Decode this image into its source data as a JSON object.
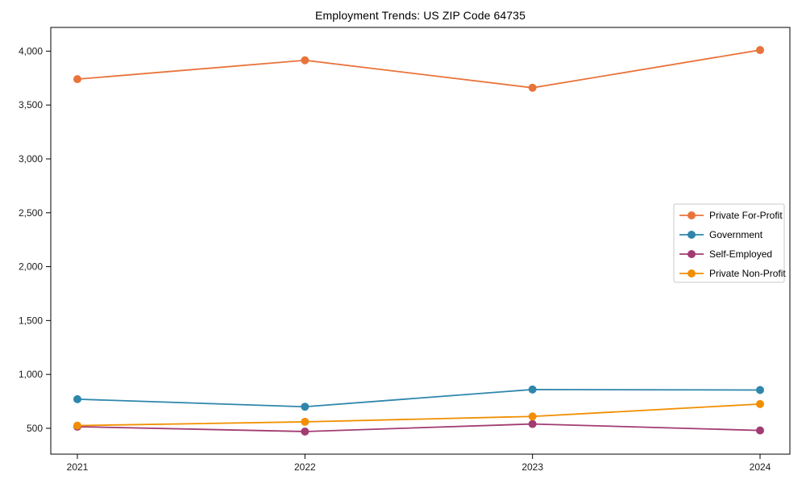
{
  "figure": {
    "background": "#ffffff",
    "axis_color": "#000000",
    "tick_label_color": "#1a1a1a",
    "legend": {
      "background": "#ffffff",
      "border_color": "#c9c9c9"
    }
  },
  "chart_data": {
    "type": "line",
    "title": "Employment Trends: US ZIP Code 64735",
    "xlabel": "",
    "ylabel": "",
    "categories": [
      "2021",
      "2022",
      "2023",
      "2024"
    ],
    "series": [
      {
        "name": "Private For-Profit",
        "color": "#E8743B",
        "values": [
          3740,
          3915,
          3660,
          4010
        ]
      },
      {
        "name": "Government",
        "color": "#2E86AB",
        "values": [
          770,
          700,
          860,
          855
        ]
      },
      {
        "name": "Self-Employed",
        "color": "#A23B72",
        "values": [
          515,
          470,
          540,
          480
        ]
      },
      {
        "name": "Private Non-Profit",
        "color": "#F18F01",
        "values": [
          525,
          560,
          610,
          725
        ]
      }
    ],
    "ylim": [
      260,
      4220
    ],
    "yticks": [
      500,
      1000,
      1500,
      2000,
      2500,
      3000,
      3500,
      4000
    ],
    "ytick_labels": [
      "500",
      "1,000",
      "1,500",
      "2,000",
      "2,500",
      "3,000",
      "3,500",
      "4,000"
    ],
    "grid": false,
    "legend_position": "center-right",
    "marker": "circle",
    "marker_radius": 5,
    "line_width": 1.8
  }
}
